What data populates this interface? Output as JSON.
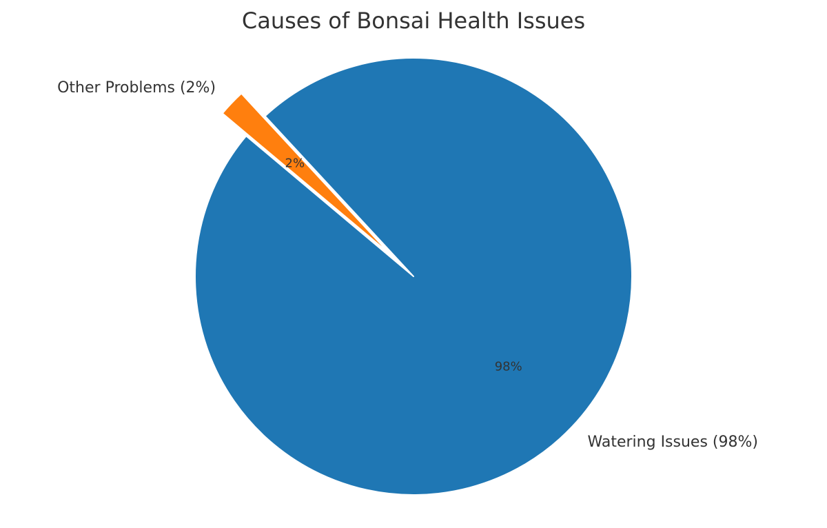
{
  "chart_data": {
    "type": "pie",
    "title": "Causes of Bonsai Health Issues",
    "slices": [
      {
        "label": "Watering Issues (98%)",
        "value": 98,
        "pct_label": "98%",
        "color": "#1f77b4",
        "exploded": false
      },
      {
        "label": "Other Problems (2%)",
        "value": 2,
        "pct_label": "2%",
        "color": "#ff7f0e",
        "exploded": true
      }
    ]
  }
}
